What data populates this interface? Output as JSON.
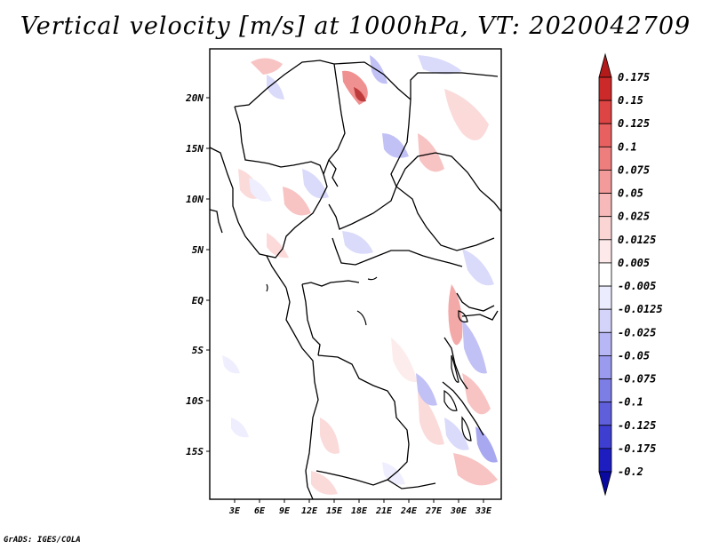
{
  "title": "Vertical velocity [m/s] at 1000hPa, VT: 2020042709",
  "credit": "GrADS: IGES/COLA",
  "map": {
    "lat_labels": [
      "20N",
      "15N",
      "10N",
      "5N",
      "EQ",
      "5S",
      "10S",
      "15S"
    ],
    "lon_labels": [
      "3E",
      "6E",
      "9E",
      "12E",
      "15E",
      "18E",
      "21E",
      "24E",
      "27E",
      "30E",
      "33E"
    ]
  },
  "colorbar": {
    "levels": [
      "0.175",
      "0.15",
      "0.125",
      "0.1",
      "0.075",
      "0.05",
      "0.025",
      "0.0125",
      "0.005",
      "-0.005",
      "-0.0125",
      "-0.025",
      "-0.05",
      "-0.075",
      "-0.1",
      "-0.125",
      "-0.175",
      "-0.2"
    ],
    "colors": [
      "#b31a1a",
      "#cc2a2a",
      "#dd4444",
      "#e86060",
      "#ee7e7e",
      "#f39b9b",
      "#f7b9b9",
      "#fbd4d4",
      "#fde9e9",
      "#ffffff",
      "#ececff",
      "#d4d4fb",
      "#b7b7f5",
      "#9a9aef",
      "#7d7de6",
      "#5f5fdc",
      "#3e3ed0",
      "#1e1ec0",
      "#0a0aa0"
    ]
  }
}
